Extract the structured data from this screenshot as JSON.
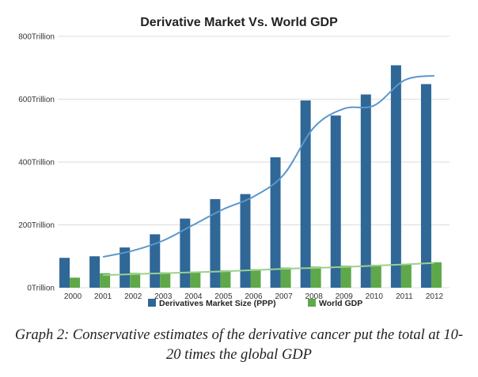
{
  "chart_data": {
    "type": "bar",
    "title": "Derivative Market Vs. World GDP",
    "categories": [
      "2000",
      "2001",
      "2002",
      "2003",
      "2004",
      "2005",
      "2006",
      "2007",
      "2008",
      "2009",
      "2010",
      "2011",
      "2012"
    ],
    "series": [
      {
        "name": "Derivatives Market Size (PPP)",
        "values": [
          95,
          100,
          128,
          170,
          220,
          282,
          298,
          415,
          596,
          548,
          615,
          708,
          648
        ]
      },
      {
        "name": "World GDP",
        "values": [
          32,
          46,
          47,
          49,
          51,
          55,
          59,
          64,
          67,
          70,
          73,
          76,
          81
        ]
      }
    ],
    "trendlines": [
      {
        "series": "Derivatives Market Size (PPP)",
        "values": [
          null,
          98,
          118,
          150,
          200,
          250,
          290,
          360,
          510,
          570,
          580,
          660,
          675
        ]
      },
      {
        "series": "World GDP",
        "values": [
          null,
          40,
          43,
          46,
          49,
          52,
          56,
          60,
          63,
          66,
          70,
          74,
          79
        ]
      }
    ],
    "ylim": [
      0,
      800
    ],
    "yticks": [
      {
        "value": 0,
        "label": "0Trillion"
      },
      {
        "value": 200,
        "label": "200Trillion"
      },
      {
        "value": 400,
        "label": "400Trillion"
      },
      {
        "value": 600,
        "label": "600Trillion"
      },
      {
        "value": 800,
        "label": "800Trillion"
      }
    ],
    "grid": true,
    "legend_position": "bottom",
    "colors": {
      "derivatives": "#2f6797",
      "gdp": "#5fa84a",
      "derivatives_trend": "#5b97cb",
      "gdp_trend": "#9bd18c",
      "grid": "#dddddd"
    }
  },
  "caption": {
    "line1": "Graph 2: Conservative estimates of the derivative cancer put  the total at 10-",
    "line2": "20 times the global GDP"
  }
}
